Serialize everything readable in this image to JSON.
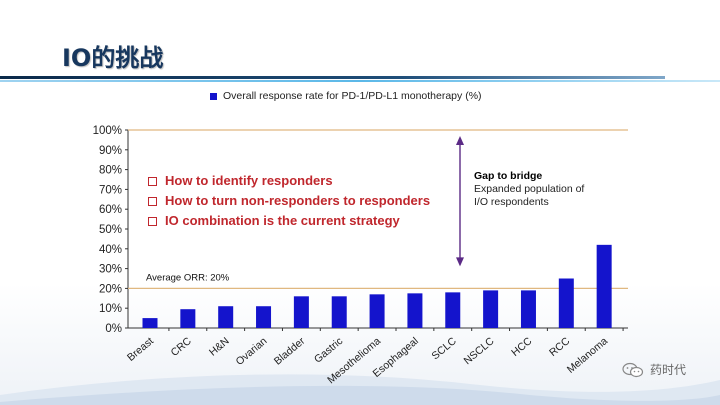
{
  "slide": {
    "title": "IO的挑战"
  },
  "callouts": [
    "How to identify responders",
    "How to turn non-responders to responders",
    "IO combination is the current strategy"
  ],
  "gap": {
    "title": "Gap to bridge",
    "line1": "Expanded population of",
    "line2": "I/O respondents"
  },
  "watermark": {
    "label": "药时代",
    "icon": "wechat-icon"
  },
  "colors": {
    "bar": "#1414cc",
    "reference_line": "#e0b880",
    "arrow": "#5b2a86",
    "callout_text": "#c0272d",
    "title": "#17375e"
  },
  "chart_data": {
    "type": "bar",
    "legend": "Overall response rate for PD-1/PD-L1 monotherapy (%)",
    "legend_position": "top",
    "categories": [
      "Breast",
      "CRC",
      "H&N",
      "Ovarian",
      "Bladder",
      "Gastric",
      "Mesothelioma",
      "Esophageal",
      "SCLC",
      "NSCLC",
      "HCC",
      "RCC",
      "Melanoma"
    ],
    "values": [
      5,
      9.5,
      11,
      11,
      16,
      16,
      17,
      17.5,
      18,
      19,
      19,
      25,
      42
    ],
    "ylim": [
      0,
      100
    ],
    "yticks": [
      "0%",
      "10%",
      "20%",
      "30%",
      "40%",
      "50%",
      "60%",
      "70%",
      "80%",
      "90%",
      "100%"
    ],
    "reference_lines": [
      {
        "value": 20,
        "label": "Average ORR: 20%"
      },
      {
        "value": 100,
        "label": ""
      }
    ],
    "arrow_range": [
      20,
      100
    ],
    "grid": false
  }
}
